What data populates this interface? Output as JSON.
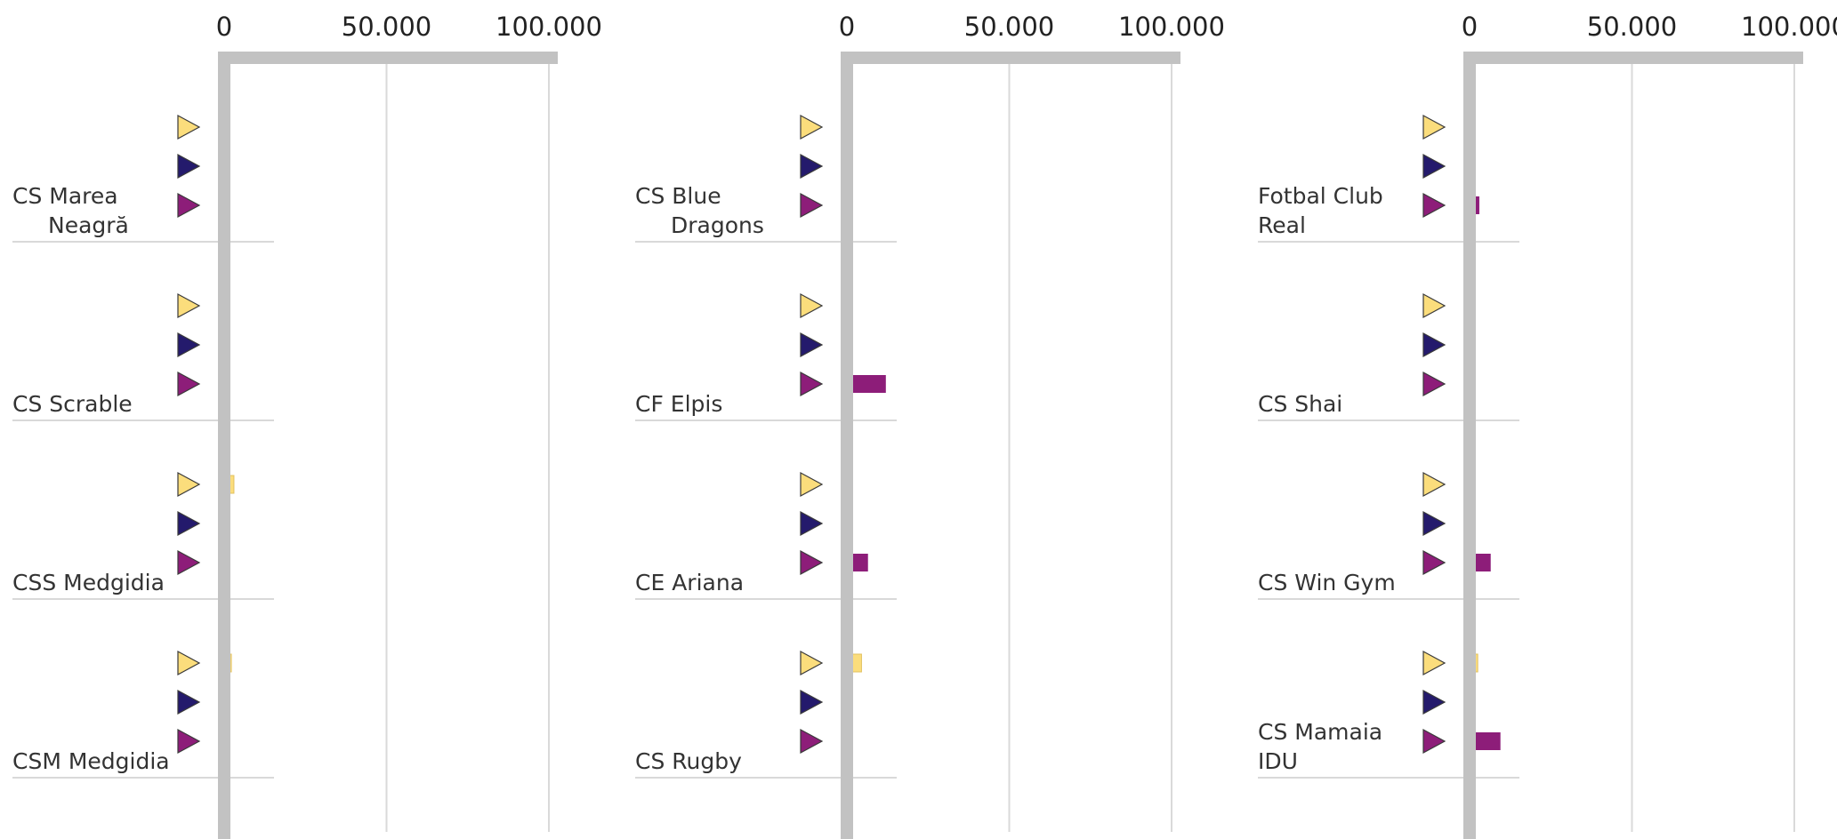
{
  "chart_data": [
    {
      "type": "bar",
      "orientation": "horizontal",
      "xlim": [
        0,
        100000
      ],
      "ticks": [
        {
          "value": 0,
          "label": "0"
        },
        {
          "value": 50000,
          "label": "50.000"
        },
        {
          "value": 100000,
          "label": "100.000"
        }
      ],
      "categories": [
        {
          "lines": [
            "CS Marea",
            "Neagră"
          ],
          "values": [
            0,
            1500,
            0
          ]
        },
        {
          "lines": [
            "CS Scrable"
          ],
          "values": [
            1200,
            0,
            0
          ]
        },
        {
          "lines": [
            "CSS Medgidia"
          ],
          "values": [
            3000,
            0,
            0
          ]
        },
        {
          "lines": [
            "CSM Medgidia"
          ],
          "values": [
            2200,
            0,
            0
          ]
        }
      ]
    },
    {
      "type": "bar",
      "orientation": "horizontal",
      "xlim": [
        0,
        100000
      ],
      "ticks": [
        {
          "value": 0,
          "label": "0"
        },
        {
          "value": 50000,
          "label": "50.000"
        },
        {
          "value": 100000,
          "label": "100.000"
        }
      ],
      "categories": [
        {
          "lines": [
            "CS Blue",
            "Dragons"
          ],
          "values": [
            1000,
            0,
            0
          ]
        },
        {
          "lines": [
            "CF Elpis"
          ],
          "values": [
            0,
            0,
            12000
          ]
        },
        {
          "lines": [
            "CE Ariana"
          ],
          "values": [
            0,
            0,
            6500
          ]
        },
        {
          "lines": [
            "CS Rugby"
          ],
          "values": [
            4500,
            0,
            0
          ]
        }
      ]
    },
    {
      "type": "bar",
      "orientation": "horizontal",
      "xlim": [
        0,
        100000
      ],
      "ticks": [
        {
          "value": 0,
          "label": "0"
        },
        {
          "value": 50000,
          "label": "50.000"
        },
        {
          "value": 100000,
          "label": "100.000"
        }
      ],
      "categories": [
        {
          "lines": [
            "Fotbal Club",
            "Real"
          ],
          "values": [
            1000,
            0,
            3000
          ]
        },
        {
          "lines": [
            "CS Shai"
          ],
          "values": [
            0,
            0,
            1000
          ]
        },
        {
          "lines": [
            "CS Win Gym"
          ],
          "values": [
            0,
            0,
            6500
          ]
        },
        {
          "lines": [
            "CS Mamaia",
            "IDU"
          ],
          "values": [
            2500,
            0,
            9500
          ]
        }
      ]
    }
  ],
  "series_colors": [
    "#FBDD7C",
    "#241A6C",
    "#8D1D79"
  ],
  "colors": {
    "axis": "#C2C2C2",
    "grid": "#DADADA",
    "separator": "#D9D9D9",
    "marker_stroke": "#3a3a3a"
  }
}
